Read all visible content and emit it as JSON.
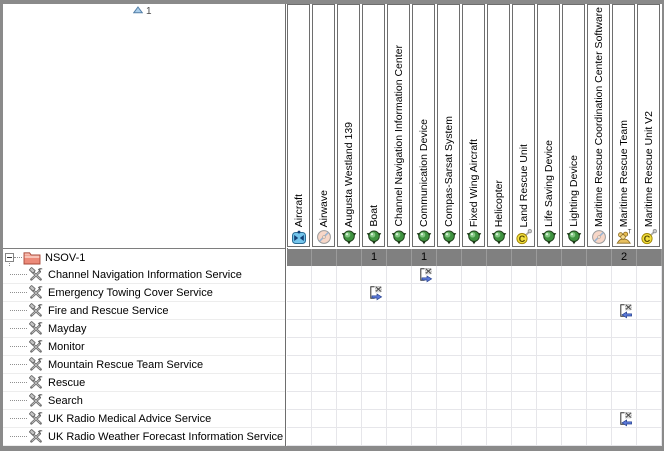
{
  "sort_indicator": {
    "icon": "sort-ascending-icon",
    "order": "1"
  },
  "tree": {
    "root": {
      "label": "NSOV-1",
      "icon": "package-icon",
      "expander_state": "expanded"
    },
    "rows": [
      {
        "label": "Channel Navigation Information Service",
        "icon": "service-icon"
      },
      {
        "label": "Emergency Towing Cover Service",
        "icon": "service-icon"
      },
      {
        "label": "Fire and Rescue Service",
        "icon": "service-icon"
      },
      {
        "label": "Mayday",
        "icon": "service-icon"
      },
      {
        "label": "Monitor",
        "icon": "service-icon"
      },
      {
        "label": "Mountain Rescue Team Service",
        "icon": "service-icon"
      },
      {
        "label": "Rescue",
        "icon": "service-icon"
      },
      {
        "label": "Search",
        "icon": "service-icon"
      },
      {
        "label": "UK Radio Medical Advice Service",
        "icon": "service-icon"
      },
      {
        "label": "UK Radio Weather Forecast Information Service",
        "icon": "service-icon"
      }
    ]
  },
  "matrix": {
    "columns": [
      {
        "label": "Aircraft",
        "icon": "aircraft-icon",
        "count": ""
      },
      {
        "label": "Airwave",
        "icon": "software-disk-icon",
        "count": ""
      },
      {
        "label": "Augusta Westland 139",
        "icon": "resource-icon",
        "count": ""
      },
      {
        "label": "Boat",
        "icon": "resource-icon",
        "count": "1"
      },
      {
        "label": "Channel Navigation Information Center",
        "icon": "resource-icon",
        "count": ""
      },
      {
        "label": "Communication Device",
        "icon": "resource-icon",
        "count": "1"
      },
      {
        "label": "Compas-Sarsat System",
        "icon": "resource-icon",
        "count": ""
      },
      {
        "label": "Fixed Wing Aircraft",
        "icon": "resource-icon",
        "count": ""
      },
      {
        "label": "Helicopter",
        "icon": "resource-icon",
        "count": ""
      },
      {
        "label": "Land Rescue Unit",
        "icon": "capability-configuration-icon",
        "count": ""
      },
      {
        "label": "Life Saving Device",
        "icon": "resource-icon",
        "count": ""
      },
      {
        "label": "Lighting Device",
        "icon": "resource-icon",
        "count": ""
      },
      {
        "label": "Maritime Rescue Coordination Center Software",
        "icon": "software-disk-icon",
        "count": ""
      },
      {
        "label": "Maritime Rescue Team",
        "icon": "organization-icon",
        "count": "2"
      },
      {
        "label": "Maritime Rescue Unit V2",
        "icon": "capability-configuration-icon",
        "count": ""
      }
    ],
    "connections": [
      {
        "row": 0,
        "col": 5,
        "direction": "right",
        "icon": "relationship-arrow-icon"
      },
      {
        "row": 1,
        "col": 3,
        "direction": "right",
        "icon": "relationship-arrow-icon"
      },
      {
        "row": 2,
        "col": 13,
        "direction": "left",
        "icon": "relationship-arrow-icon"
      },
      {
        "row": 8,
        "col": 13,
        "direction": "left",
        "icon": "relationship-arrow-icon"
      }
    ]
  },
  "colors": {
    "frame": "#8a8a8a",
    "aggregate_row_bg": "#808080",
    "grid_line": "#e6e6ea",
    "header_border": "#6e6e6e",
    "arrow_blue": "#5b79d8"
  }
}
